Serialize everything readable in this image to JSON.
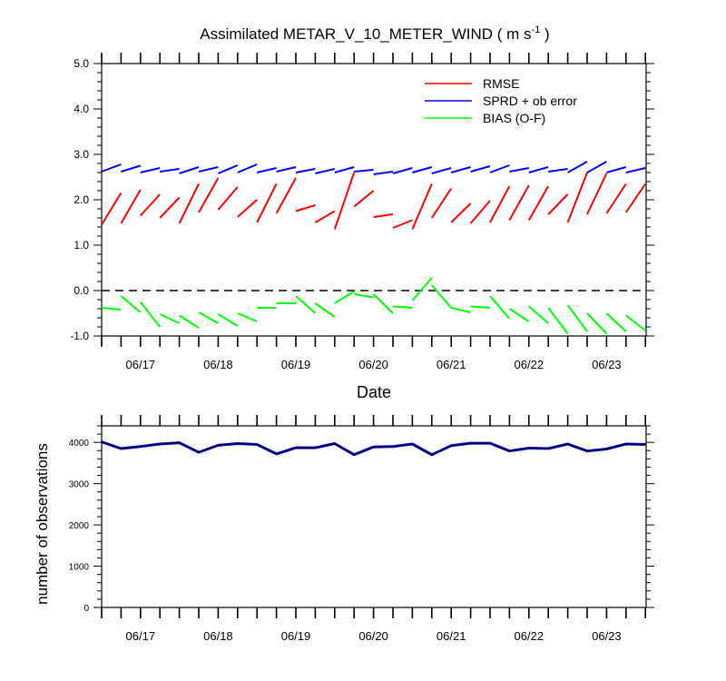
{
  "chart_data": [
    {
      "type": "line",
      "title_main": "Assimilated METAR_V_10_METER_WIND ( m s",
      "title_sup": "-1",
      "title_end": " )",
      "xlabel": "Date",
      "ylabel": "",
      "ylim": [
        -1.0,
        5.0
      ],
      "yticks": [
        "-1.0",
        "0.0",
        "1.0",
        "2.0",
        "3.0",
        "4.0",
        "5.0"
      ],
      "x_tick_labels": [
        "06/17",
        "06/18",
        "06/19",
        "06/20",
        "06/21",
        "06/22",
        "06/23"
      ],
      "xlim_index": [
        0,
        28
      ],
      "reference_line": {
        "y": 0.0,
        "style": "dashed"
      },
      "legend_position": "top-right",
      "legend": [
        "RMSE",
        "SPRD + ob error",
        "BIAS (O-F)"
      ],
      "series": [
        {
          "name": "RMSE",
          "color": "#ff0000",
          "segments": [
            [
              [
                0,
                1.45
              ],
              [
                1,
                2.15
              ]
            ],
            [
              [
                1,
                1.48
              ],
              [
                2,
                2.22
              ]
            ],
            [
              [
                2,
                1.65
              ],
              [
                3,
                2.12
              ]
            ],
            [
              [
                3,
                1.6
              ],
              [
                4,
                2.05
              ]
            ],
            [
              [
                4,
                1.48
              ],
              [
                5,
                2.35
              ]
            ],
            [
              [
                5,
                1.72
              ],
              [
                6,
                2.48
              ]
            ],
            [
              [
                6,
                1.78
              ],
              [
                7,
                2.28
              ]
            ],
            [
              [
                7,
                1.62
              ],
              [
                8,
                2.0
              ]
            ],
            [
              [
                8,
                1.5
              ],
              [
                9,
                2.35
              ]
            ],
            [
              [
                9,
                1.7
              ],
              [
                10,
                2.48
              ]
            ],
            [
              [
                10,
                1.75
              ],
              [
                11,
                1.88
              ]
            ],
            [
              [
                11,
                1.5
              ],
              [
                12,
                1.75
              ]
            ],
            [
              [
                12,
                1.35
              ],
              [
                13,
                2.6
              ]
            ],
            [
              [
                13,
                1.85
              ],
              [
                14,
                2.2
              ]
            ],
            [
              [
                14,
                1.62
              ],
              [
                15,
                1.68
              ]
            ],
            [
              [
                15,
                1.38
              ],
              [
                16,
                1.55
              ]
            ],
            [
              [
                16,
                1.35
              ],
              [
                16.3,
                1.65
              ]
            ],
            [
              [
                16.3,
                1.65
              ],
              [
                17,
                2.35
              ]
            ],
            [
              [
                17,
                1.6
              ],
              [
                18,
                2.25
              ]
            ],
            [
              [
                18,
                1.5
              ],
              [
                19,
                1.92
              ]
            ],
            [
              [
                19,
                1.48
              ],
              [
                20,
                1.98
              ]
            ],
            [
              [
                20,
                1.5
              ],
              [
                21,
                2.3
              ]
            ],
            [
              [
                21,
                1.55
              ],
              [
                22,
                2.32
              ]
            ],
            [
              [
                22,
                1.55
              ],
              [
                23,
                2.3
              ]
            ],
            [
              [
                23,
                1.68
              ],
              [
                24,
                2.12
              ]
            ],
            [
              [
                24,
                1.5
              ],
              [
                25,
                2.6
              ]
            ],
            [
              [
                25,
                1.68
              ],
              [
                26,
                2.58
              ]
            ],
            [
              [
                26,
                1.7
              ],
              [
                27,
                2.35
              ]
            ],
            [
              [
                27,
                1.72
              ],
              [
                28,
                2.35
              ]
            ]
          ]
        },
        {
          "name": "SPRD + ob error",
          "color": "#0000ff",
          "segments": [
            [
              [
                0,
                2.62
              ],
              [
                1,
                2.78
              ]
            ],
            [
              [
                1,
                2.62
              ],
              [
                2,
                2.75
              ]
            ],
            [
              [
                2,
                2.6
              ],
              [
                3,
                2.7
              ]
            ],
            [
              [
                3,
                2.62
              ],
              [
                4,
                2.68
              ]
            ],
            [
              [
                4,
                2.58
              ],
              [
                5,
                2.72
              ]
            ],
            [
              [
                5,
                2.62
              ],
              [
                6,
                2.72
              ]
            ],
            [
              [
                6,
                2.58
              ],
              [
                7,
                2.76
              ]
            ],
            [
              [
                7,
                2.6
              ],
              [
                8,
                2.78
              ]
            ],
            [
              [
                8,
                2.6
              ],
              [
                9,
                2.7
              ]
            ],
            [
              [
                9,
                2.62
              ],
              [
                10,
                2.72
              ]
            ],
            [
              [
                10,
                2.6
              ],
              [
                11,
                2.68
              ]
            ],
            [
              [
                11,
                2.58
              ],
              [
                12,
                2.68
              ]
            ],
            [
              [
                12,
                2.6
              ],
              [
                13,
                2.72
              ]
            ],
            [
              [
                13,
                2.62
              ],
              [
                14,
                2.66
              ]
            ],
            [
              [
                14,
                2.56
              ],
              [
                15,
                2.62
              ]
            ],
            [
              [
                15,
                2.58
              ],
              [
                16,
                2.7
              ]
            ],
            [
              [
                16,
                2.6
              ],
              [
                17,
                2.72
              ]
            ],
            [
              [
                17,
                2.58
              ],
              [
                18,
                2.7
              ]
            ],
            [
              [
                18,
                2.6
              ],
              [
                19,
                2.72
              ]
            ],
            [
              [
                19,
                2.62
              ],
              [
                20,
                2.74
              ]
            ],
            [
              [
                20,
                2.6
              ],
              [
                21,
                2.76
              ]
            ],
            [
              [
                21,
                2.62
              ],
              [
                22,
                2.7
              ]
            ],
            [
              [
                22,
                2.6
              ],
              [
                23,
                2.72
              ]
            ],
            [
              [
                23,
                2.62
              ],
              [
                24,
                2.68
              ]
            ],
            [
              [
                24,
                2.6
              ],
              [
                25,
                2.84
              ]
            ],
            [
              [
                25,
                2.6
              ],
              [
                26,
                2.84
              ]
            ],
            [
              [
                26,
                2.6
              ],
              [
                27,
                2.72
              ]
            ],
            [
              [
                27,
                2.6
              ],
              [
                28,
                2.7
              ]
            ]
          ]
        },
        {
          "name": "BIAS (O-F)",
          "color": "#00ff00",
          "segments": [
            [
              [
                0,
                -0.38
              ],
              [
                1,
                -0.42
              ]
            ],
            [
              [
                1,
                -0.12
              ],
              [
                2,
                -0.48
              ]
            ],
            [
              [
                2,
                -0.25
              ],
              [
                3,
                -0.8
              ]
            ],
            [
              [
                3,
                -0.52
              ],
              [
                4,
                -0.72
              ]
            ],
            [
              [
                4,
                -0.55
              ],
              [
                5,
                -0.82
              ]
            ],
            [
              [
                5,
                -0.48
              ],
              [
                6,
                -0.72
              ]
            ],
            [
              [
                6,
                -0.52
              ],
              [
                7,
                -0.78
              ]
            ],
            [
              [
                7,
                -0.5
              ],
              [
                8,
                -0.68
              ]
            ],
            [
              [
                8,
                -0.38
              ],
              [
                9,
                -0.38
              ]
            ],
            [
              [
                9,
                -0.28
              ],
              [
                10,
                -0.28
              ]
            ],
            [
              [
                10,
                -0.12
              ],
              [
                11,
                -0.5
              ]
            ],
            [
              [
                11,
                -0.28
              ],
              [
                12,
                -0.58
              ]
            ],
            [
              [
                12,
                -0.28
              ],
              [
                13,
                -0.02
              ]
            ],
            [
              [
                13,
                -0.08
              ],
              [
                14,
                -0.15
              ]
            ],
            [
              [
                14,
                -0.08
              ],
              [
                15,
                -0.5
              ]
            ],
            [
              [
                15,
                -0.35
              ],
              [
                16,
                -0.38
              ]
            ],
            [
              [
                16,
                -0.22
              ],
              [
                17,
                0.28
              ]
            ],
            [
              [
                17,
                0.12
              ],
              [
                18,
                -0.38
              ]
            ],
            [
              [
                18,
                -0.38
              ],
              [
                19,
                -0.48
              ]
            ],
            [
              [
                19,
                -0.35
              ],
              [
                20,
                -0.38
              ]
            ],
            [
              [
                20,
                -0.12
              ],
              [
                21,
                -0.62
              ]
            ],
            [
              [
                21,
                -0.4
              ],
              [
                22,
                -0.68
              ]
            ],
            [
              [
                22,
                -0.35
              ],
              [
                23,
                -0.72
              ]
            ],
            [
              [
                23,
                -0.38
              ],
              [
                24,
                -0.95
              ]
            ],
            [
              [
                24,
                -0.32
              ],
              [
                25,
                -0.9
              ]
            ],
            [
              [
                25,
                -0.5
              ],
              [
                26,
                -0.95
              ]
            ],
            [
              [
                26,
                -0.5
              ],
              [
                27,
                -0.9
              ]
            ],
            [
              [
                27,
                -0.55
              ],
              [
                28,
                -0.88
              ]
            ]
          ]
        }
      ]
    },
    {
      "type": "line",
      "ylabel": "number of observations",
      "ylim": [
        0,
        4400
      ],
      "yticks": [
        "0",
        "1000",
        "2000",
        "3000",
        "4000"
      ],
      "x_tick_labels": [
        "06/17",
        "06/18",
        "06/19",
        "06/20",
        "06/21",
        "06/22",
        "06/23"
      ],
      "xlim_index": [
        0,
        28
      ],
      "series": [
        {
          "color_outer": "#0000ff",
          "color_inner": "#000000",
          "values": [
            4010,
            3850,
            3900,
            3960,
            3990,
            3760,
            3930,
            3970,
            3950,
            3720,
            3870,
            3870,
            3970,
            3700,
            3890,
            3900,
            3960,
            3700,
            3920,
            3980,
            3980,
            3790,
            3860,
            3850,
            3960,
            3790,
            3840,
            3960,
            3950
          ]
        }
      ]
    }
  ]
}
